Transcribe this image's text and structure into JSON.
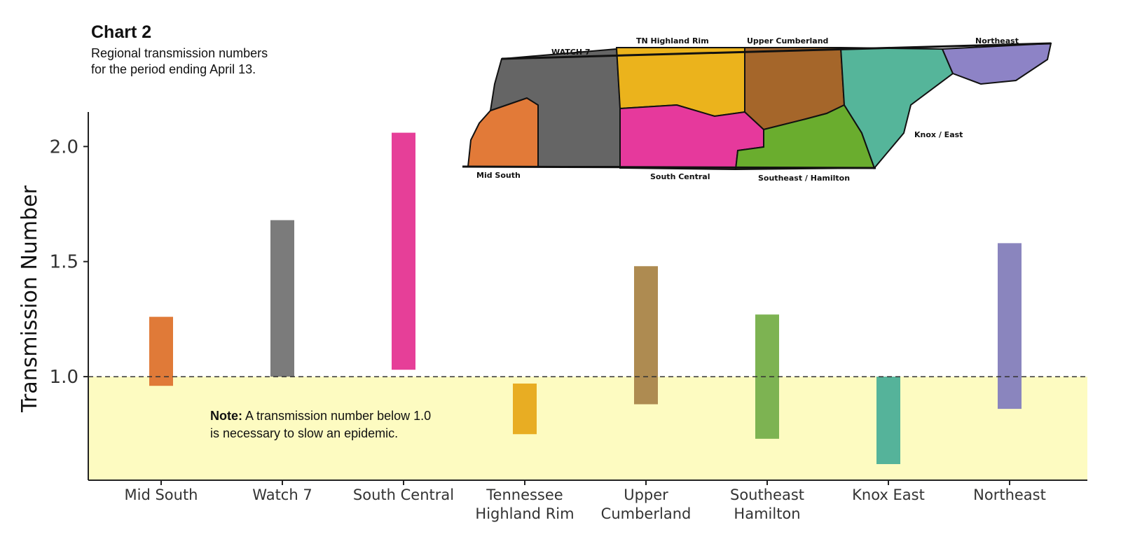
{
  "header": {
    "title": "Chart 2",
    "subtitle": "Regional transmission numbers\nfor the period ending April 13."
  },
  "note": {
    "bold": "Note:",
    "text": " A transmission number below 1.0 is necessary to slow an epidemic."
  },
  "map": {
    "regions": [
      {
        "name": "WATCH 7",
        "color": "#656565"
      },
      {
        "name": "TN Highland Rim",
        "color": "#ebb31c"
      },
      {
        "name": "Upper Cumberland",
        "color": "#a5662a"
      },
      {
        "name": "Northeast",
        "color": "#8d83c6"
      },
      {
        "name": "Knox / East",
        "color": "#55b59a"
      },
      {
        "name": "Southeast / Hamilton",
        "color": "#6aad2e"
      },
      {
        "name": "South Central",
        "color": "#e6399c"
      },
      {
        "name": "Mid South",
        "color": "#e27a38"
      }
    ]
  },
  "chart_data": {
    "type": "bar",
    "subtype": "floating-range",
    "ylabel": "Transmission Number",
    "ylim": [
      0.55,
      2.15
    ],
    "yticks": [
      "1.0",
      "1.5",
      "2.0"
    ],
    "reference_line": 1.0,
    "shaded_region": [
      0.55,
      1.0
    ],
    "shaded_color": "#fdfbc1",
    "categories": [
      [
        "Mid South"
      ],
      [
        "Watch 7"
      ],
      [
        "South Central"
      ],
      [
        "Tennessee",
        "Highland Rim"
      ],
      [
        "Upper",
        "Cumberland"
      ],
      [
        "Southeast",
        "Hamilton"
      ],
      [
        "Knox East"
      ],
      [
        "Northeast"
      ]
    ],
    "ranges": [
      {
        "low": 0.96,
        "high": 1.26,
        "color": "#e07a38"
      },
      {
        "low": 1.0,
        "high": 1.68,
        "color": "#7b7b7b"
      },
      {
        "low": 1.03,
        "high": 2.06,
        "color": "#e63f98"
      },
      {
        "low": 0.75,
        "high": 0.97,
        "color": "#e8ad23"
      },
      {
        "low": 0.88,
        "high": 1.48,
        "color": "#ae8b51"
      },
      {
        "low": 0.73,
        "high": 1.27,
        "color": "#7db352"
      },
      {
        "low": 0.62,
        "high": 1.0,
        "color": "#55b39a"
      },
      {
        "low": 0.86,
        "high": 1.58,
        "color": "#8a85be"
      }
    ],
    "grid": false,
    "legend": "none"
  }
}
